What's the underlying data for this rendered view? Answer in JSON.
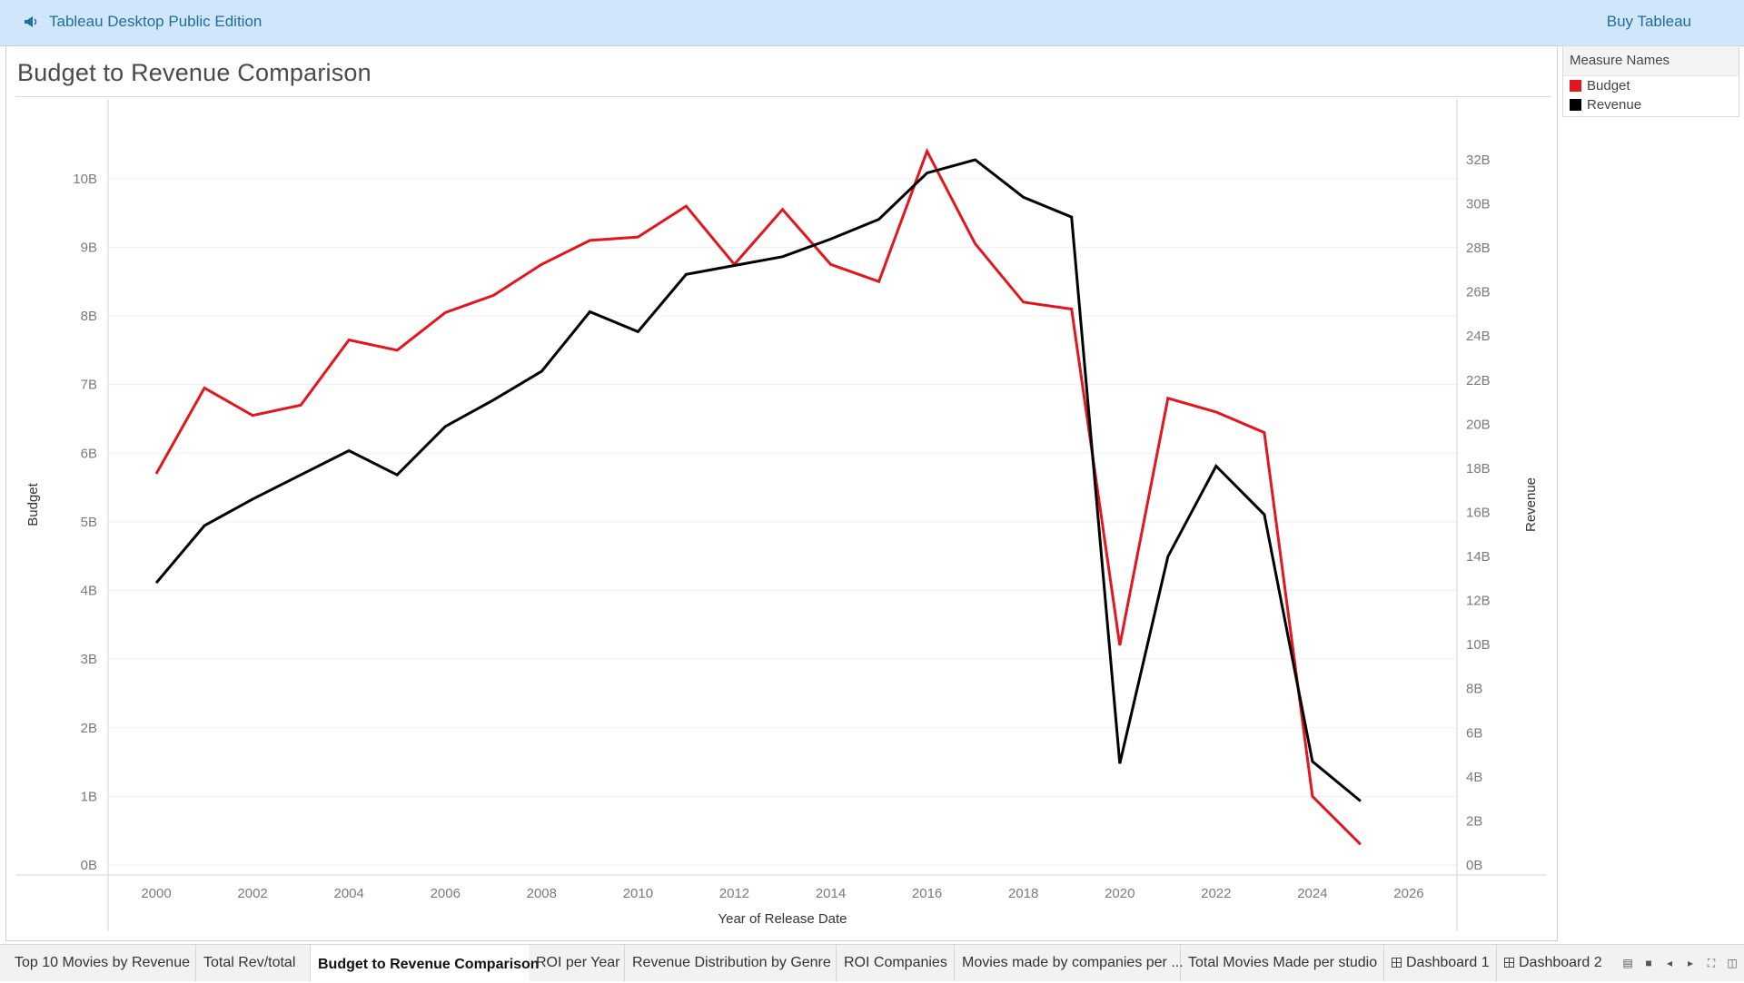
{
  "app": {
    "title": "Tableau Desktop Public Edition",
    "buy_label": "Buy Tableau"
  },
  "worksheet": {
    "title": "Budget to Revenue Comparison"
  },
  "legend": {
    "title": "Measure Names",
    "items": [
      {
        "label": "Budget",
        "color": "#e3161d"
      },
      {
        "label": "Revenue",
        "color": "#000000"
      }
    ]
  },
  "tabs": [
    {
      "label": "Top 10 Movies by Revenue"
    },
    {
      "label": "Total Rev/total"
    },
    {
      "label": "Budget to Revenue Comparison",
      "active": true
    },
    {
      "label": "ROI per Year"
    },
    {
      "label": "Revenue Distribution by Genre"
    },
    {
      "label": "ROI Companies"
    },
    {
      "label": "Movies made by companies per ..."
    },
    {
      "label": "Total Movies Made per studio"
    },
    {
      "label": "Dashboard 1",
      "icon": "dashboard-icon"
    },
    {
      "label": "Dashboard 2",
      "icon": "dashboard-icon"
    }
  ],
  "chart_data": {
    "type": "line",
    "title": "Budget to Revenue Comparison",
    "xlabel": "Year of Release Date",
    "ylabel": "Budget",
    "y2label": "Revenue",
    "x": [
      2000,
      2001,
      2002,
      2003,
      2004,
      2005,
      2006,
      2007,
      2008,
      2009,
      2010,
      2011,
      2012,
      2013,
      2014,
      2015,
      2016,
      2017,
      2018,
      2019,
      2020,
      2021,
      2022,
      2023,
      2024,
      2025
    ],
    "xlim": [
      1999,
      2027
    ],
    "xticks": [
      "2000",
      "2002",
      "2004",
      "2006",
      "2008",
      "2010",
      "2012",
      "2014",
      "2016",
      "2018",
      "2020",
      "2022",
      "2024",
      "2026"
    ],
    "ylim": [
      0,
      10.5
    ],
    "yticks": [
      "0B",
      "1B",
      "2B",
      "3B",
      "4B",
      "5B",
      "6B",
      "7B",
      "8B",
      "9B",
      "10B"
    ],
    "y2lim": [
      0,
      32.7
    ],
    "y2ticks": [
      "0B",
      "2B",
      "4B",
      "6B",
      "8B",
      "10B",
      "12B",
      "14B",
      "16B",
      "18B",
      "20B",
      "22B",
      "24B",
      "26B",
      "28B",
      "30B",
      "32B"
    ],
    "series": [
      {
        "name": "Budget",
        "axis": "left",
        "color": "#e3161d",
        "values": [
          5.7,
          6.95,
          6.55,
          6.7,
          7.65,
          7.5,
          8.05,
          8.3,
          8.75,
          9.1,
          9.15,
          9.6,
          8.75,
          9.55,
          8.75,
          8.5,
          10.4,
          9.05,
          8.2,
          8.1,
          3.2,
          6.8,
          6.6,
          6.3,
          1.0,
          0.3
        ]
      },
      {
        "name": "Revenue",
        "axis": "right",
        "color": "#000000",
        "values": [
          12.8,
          15.4,
          16.6,
          17.7,
          18.8,
          17.7,
          19.9,
          21.1,
          22.4,
          25.1,
          24.2,
          26.8,
          27.2,
          27.6,
          28.4,
          29.3,
          31.4,
          32.0,
          30.3,
          29.4,
          4.6,
          14.0,
          18.1,
          15.9,
          4.7,
          2.9
        ]
      }
    ]
  }
}
